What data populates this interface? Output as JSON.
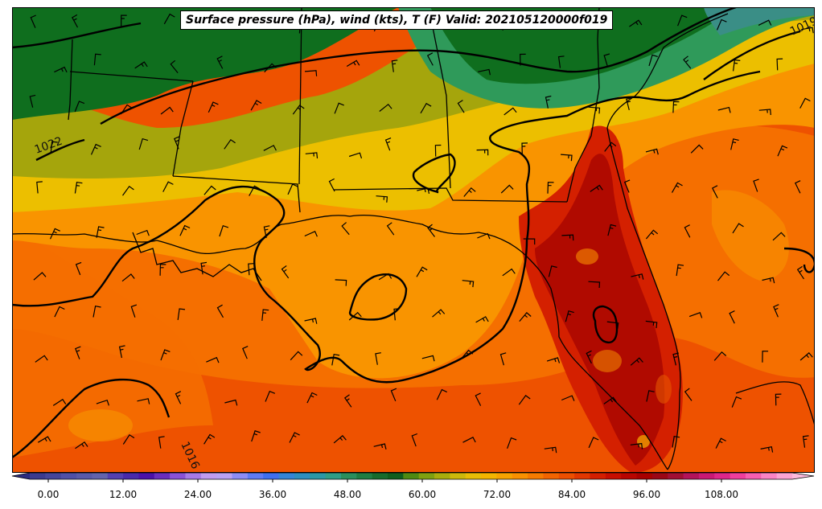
{
  "title": "Surface pressure (hPa), wind (kts), T (F) Valid: 202105120000f019",
  "isobar_labels": [
    {
      "text": "1022",
      "rotate": -20
    },
    {
      "text": "1019",
      "rotate": -25
    },
    {
      "text": "1016",
      "rotate": 65
    }
  ],
  "colorbar": {
    "tick_labels": [
      "0.00",
      "12.00",
      "24.00",
      "36.00",
      "48.00",
      "60.00",
      "72.00",
      "84.00",
      "96.00",
      "108.00"
    ],
    "colors": [
      "#3b3b8f",
      "#45459a",
      "#5050a6",
      "#5a5aa8",
      "#6363ad",
      "#5540b0",
      "#4a2aaa",
      "#4c12a8",
      "#6a2dbd",
      "#8a52d6",
      "#a77ae6",
      "#c09cf0",
      "#b9a2f3",
      "#8d8cf5",
      "#5f7bf4",
      "#3f6fef",
      "#3585d6",
      "#2e8fbf",
      "#2b98a6",
      "#2f9e86",
      "#2a8f5c",
      "#1f7d42",
      "#166b2c",
      "#0f5e1e",
      "#4e8a12",
      "#7fa010",
      "#a8ad0c",
      "#cdb80b",
      "#e8bd06",
      "#f3b500",
      "#f7a300",
      "#f99000",
      "#f67b00",
      "#f26400",
      "#ec4f00",
      "#e23700",
      "#d41f00",
      "#c70e00",
      "#b80500",
      "#a80000",
      "#9b0616",
      "#a10f34",
      "#b3135a",
      "#c91975",
      "#de268a",
      "#ef3e9d",
      "#f75eb1",
      "#fb83c4",
      "#fca4d3"
    ]
  },
  "map_colors": {
    "dark_green": "#0f6e1e",
    "green": "#2f9a5a",
    "olive": "#9fa20c",
    "yellow": "#ecbf00",
    "light_orange": "#f99000",
    "orange": "#f56a00",
    "red_orange": "#ea4a00",
    "red": "#c41200",
    "dark_red": "#a80000"
  }
}
